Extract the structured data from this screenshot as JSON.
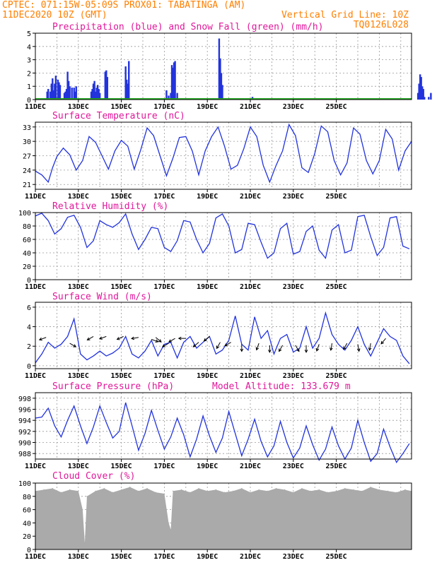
{
  "header": {
    "line1": "CPTEC:   071:15W-05:09S   PROX01: TABATINGA (AM)",
    "line2_left": "11DEC2020 10Z (GMT)",
    "line2_right": "Vertical Grid Line: 10Z",
    "line3_right": "TQ0126L028"
  },
  "colors": {
    "header": "#ff7f00",
    "title": "#e0189a",
    "line": "#2233dd",
    "snow": "#22aa22",
    "cloud": "#aaaaaa"
  },
  "date_labels": [
    "11DEC",
    "13DEC",
    "15DEC",
    "17DEC",
    "19DEC",
    "21DEC",
    "23DEC",
    "25DEC"
  ],
  "chart_data": [
    {
      "type": "bar",
      "title": "Precipitation (blue) and Snow Fall (green) (mm/h)",
      "ylim": [
        0,
        5
      ],
      "yticks": [
        0,
        1,
        2,
        3,
        4,
        5
      ],
      "x_unit": "days since 11DEC2020 10Z",
      "series": [
        {
          "name": "Precipitation",
          "color": "#2233dd",
          "x": [
            0.55,
            0.6,
            0.7,
            0.75,
            0.8,
            0.85,
            0.9,
            0.95,
            1.05,
            1.1,
            1.15,
            1.35,
            1.4,
            1.45,
            1.5,
            1.55,
            1.6,
            1.7,
            1.8,
            1.85,
            1.9,
            2.6,
            2.65,
            2.7,
            2.75,
            2.8,
            2.85,
            2.9,
            2.95,
            3.0,
            3.25,
            3.3,
            3.35,
            4.2,
            4.25,
            4.3,
            4.35,
            6.1,
            6.2,
            6.3,
            6.35,
            6.4,
            6.45,
            6.5,
            6.6,
            8.55,
            8.6,
            8.65,
            8.7,
            10.1,
            17.8,
            17.85,
            17.9,
            17.95,
            18.0,
            18.05,
            18.1,
            18.3,
            18.4
          ],
          "values": [
            0.6,
            0.8,
            0.6,
            1.2,
            1.6,
            0.7,
            1.2,
            1.8,
            1.5,
            1.3,
            1.1,
            0.5,
            0.6,
            0.8,
            2.1,
            1.4,
            1.0,
            0.9,
            0.9,
            0.6,
            1.0,
            0.6,
            0.8,
            1.2,
            1.4,
            0.6,
            0.9,
            1.1,
            0.8,
            0.5,
            2.1,
            2.2,
            1.7,
            2.5,
            1.5,
            1.2,
            2.9,
            0.7,
            0.3,
            0.5,
            2.6,
            2.4,
            2.8,
            2.9,
            0.5,
            4.6,
            3.1,
            2.0,
            1.1,
            0.2,
            0.5,
            1.2,
            1.9,
            1.7,
            1.0,
            0.8,
            0.2,
            0.2,
            0.5
          ]
        },
        {
          "name": "Snow Fall",
          "color": "#22aa22",
          "x": [
            0,
            17.5
          ],
          "values": [
            0.05,
            0.05
          ]
        }
      ]
    },
    {
      "type": "line",
      "title": "Surface Temperature (nC)",
      "ylim": [
        20,
        34
      ],
      "yticks": [
        21,
        24,
        27,
        30,
        33
      ],
      "x": [
        0,
        0.3,
        0.6,
        0.8,
        1.0,
        1.3,
        1.6,
        1.9,
        2.2,
        2.5,
        2.8,
        3.1,
        3.4,
        3.7,
        4.0,
        4.3,
        4.6,
        4.9,
        5.2,
        5.5,
        5.8,
        6.1,
        6.4,
        6.7,
        7.0,
        7.3,
        7.6,
        7.9,
        8.2,
        8.5,
        8.8,
        9.1,
        9.4,
        9.7,
        10.0,
        10.3,
        10.6,
        10.9,
        11.2,
        11.5,
        11.8,
        12.1,
        12.4,
        12.7,
        13.0,
        13.3,
        13.6,
        13.9,
        14.2,
        14.5,
        14.8,
        15.1,
        15.4,
        15.7,
        16.0,
        16.3,
        16.6,
        16.9,
        17.2,
        17.5
      ],
      "values": [
        23.8,
        23.0,
        21.5,
        24.5,
        26.8,
        28.6,
        27.2,
        24.0,
        26.0,
        31.0,
        29.8,
        27.0,
        24.2,
        28.0,
        30.2,
        29.0,
        24.2,
        28.2,
        32.8,
        31.2,
        27.0,
        22.8,
        26.5,
        30.8,
        31.0,
        28.0,
        23.0,
        28.0,
        31.0,
        33.0,
        29.0,
        24.2,
        25.0,
        28.5,
        33.0,
        31.0,
        25.0,
        21.5,
        25.0,
        28.0,
        33.5,
        31.2,
        24.5,
        23.5,
        27.5,
        33.2,
        32.0,
        26.0,
        23.0,
        25.5,
        32.8,
        31.5,
        26.0,
        23.2,
        26.0,
        32.5,
        30.5,
        24.0,
        28.0,
        30.0
      ]
    },
    {
      "type": "line",
      "title": "Relative Humidity (%)",
      "ylim": [
        0,
        100
      ],
      "yticks": [
        0,
        20,
        40,
        60,
        80,
        100
      ],
      "x": [
        0,
        0.3,
        0.6,
        0.9,
        1.2,
        1.5,
        1.8,
        2.1,
        2.4,
        2.7,
        3.0,
        3.3,
        3.6,
        3.9,
        4.2,
        4.5,
        4.8,
        5.1,
        5.4,
        5.7,
        6.0,
        6.3,
        6.6,
        6.9,
        7.2,
        7.5,
        7.8,
        8.1,
        8.4,
        8.7,
        9.0,
        9.3,
        9.6,
        9.9,
        10.2,
        10.5,
        10.8,
        11.1,
        11.4,
        11.7,
        12.0,
        12.3,
        12.6,
        12.9,
        13.2,
        13.5,
        13.8,
        14.1,
        14.4,
        14.7,
        15.0,
        15.3,
        15.6,
        15.9,
        16.2,
        16.5,
        16.8,
        17.1,
        17.4
      ],
      "values": [
        95,
        99,
        88,
        68,
        76,
        93,
        96,
        78,
        48,
        58,
        88,
        82,
        78,
        85,
        98,
        68,
        45,
        60,
        78,
        76,
        48,
        42,
        58,
        88,
        86,
        60,
        40,
        54,
        92,
        98,
        80,
        40,
        45,
        84,
        82,
        56,
        32,
        40,
        76,
        84,
        38,
        42,
        72,
        80,
        44,
        32,
        74,
        82,
        40,
        44,
        94,
        96,
        64,
        36,
        48,
        92,
        94,
        50,
        46
      ]
    },
    {
      "type": "line",
      "title": "Surface Wind (m/s)",
      "ylim": [
        -0.3,
        6.5
      ],
      "yticks": [
        0,
        2,
        4,
        6
      ],
      "x": [
        0,
        0.3,
        0.6,
        0.9,
        1.2,
        1.5,
        1.8,
        2.1,
        2.4,
        2.7,
        3.0,
        3.3,
        3.6,
        3.9,
        4.2,
        4.5,
        4.8,
        5.1,
        5.4,
        5.7,
        6.0,
        6.3,
        6.6,
        6.9,
        7.2,
        7.5,
        7.8,
        8.1,
        8.4,
        8.7,
        9.0,
        9.3,
        9.6,
        9.9,
        10.2,
        10.5,
        10.8,
        11.1,
        11.4,
        11.7,
        12.0,
        12.3,
        12.6,
        12.9,
        13.2,
        13.5,
        13.8,
        14.1,
        14.4,
        14.7,
        15.0,
        15.3,
        15.6,
        15.9,
        16.2,
        16.5,
        16.8,
        17.1,
        17.4
      ],
      "values": [
        0.3,
        1.2,
        2.4,
        1.8,
        2.2,
        3.0,
        4.8,
        1.2,
        0.6,
        1.0,
        1.5,
        1.0,
        1.3,
        1.8,
        3.0,
        1.2,
        0.8,
        1.5,
        2.6,
        1.0,
        2.2,
        2.4,
        0.8,
        2.4,
        3.0,
        1.8,
        2.4,
        3.0,
        1.2,
        1.6,
        2.6,
        5.1,
        2.2,
        1.6,
        5.0,
        2.8,
        3.6,
        1.2,
        2.8,
        3.2,
        1.4,
        1.8,
        4.0,
        1.8,
        2.8,
        5.4,
        3.2,
        2.2,
        1.6,
        2.6,
        4.0,
        2.2,
        1.0,
        2.4,
        3.8,
        3.0,
        2.6,
        1.0,
        0.2
      ],
      "vectors_x": [
        0.5,
        1.6,
        2.7,
        3.3,
        4.1,
        4.8,
        5.4,
        5.6,
        6.2,
        6.5,
        7.0,
        7.6,
        8.1,
        8.6,
        9.1,
        9.6,
        10.4,
        10.9,
        11.5,
        12.1,
        12.6,
        13.2,
        13.8,
        14.5,
        15.0,
        15.6,
        16.3
      ],
      "vectors_y": [
        2.9,
        2.3,
        3.0,
        3.0,
        3.0,
        2.9,
        2.7,
        2.9,
        2.3,
        2.8,
        2.8,
        2.4,
        3.0,
        2.4,
        2.4,
        2.2,
        2.3,
        2.1,
        2.1,
        2.1,
        2.1,
        2.2,
        2.3,
        2.3,
        2.2,
        2.3,
        2.8
      ],
      "vectors_deg": [
        160,
        30,
        150,
        160,
        155,
        170,
        20,
        40,
        150,
        150,
        180,
        140,
        140,
        120,
        150,
        90,
        110,
        90,
        120,
        60,
        90,
        110,
        100,
        120,
        80,
        100,
        130
      ]
    },
    {
      "type": "line",
      "title": "Surface Pressure (hPa)",
      "annotation": "Model Altitude: 133.679  m",
      "ylim": [
        987,
        999
      ],
      "yticks": [
        988,
        990,
        992,
        994,
        996,
        998
      ],
      "x": [
        0,
        0.3,
        0.6,
        0.9,
        1.2,
        1.5,
        1.8,
        2.1,
        2.4,
        2.7,
        3.0,
        3.3,
        3.6,
        3.9,
        4.2,
        4.5,
        4.8,
        5.1,
        5.4,
        5.7,
        6.0,
        6.3,
        6.6,
        6.9,
        7.2,
        7.5,
        7.8,
        8.1,
        8.4,
        8.7,
        9.0,
        9.3,
        9.6,
        9.9,
        10.2,
        10.5,
        10.8,
        11.1,
        11.4,
        11.7,
        12.0,
        12.3,
        12.6,
        12.9,
        13.2,
        13.5,
        13.8,
        14.1,
        14.4,
        14.7,
        15.0,
        15.3,
        15.6,
        15.9,
        16.2,
        16.5,
        16.8,
        17.1,
        17.4
      ],
      "values": [
        994.4,
        994.6,
        996.2,
        993.0,
        991.0,
        994.0,
        996.6,
        993.0,
        989.8,
        992.8,
        996.6,
        993.6,
        990.8,
        992.0,
        997.2,
        993.0,
        988.6,
        991.6,
        995.8,
        992.2,
        988.8,
        991.0,
        994.4,
        991.4,
        987.4,
        990.6,
        994.8,
        991.2,
        988.2,
        990.8,
        995.6,
        991.6,
        987.6,
        990.6,
        994.2,
        990.2,
        987.4,
        989.4,
        993.8,
        990.0,
        987.2,
        989.0,
        993.0,
        989.6,
        986.8,
        988.8,
        992.8,
        989.4,
        987.0,
        989.0,
        994.0,
        990.0,
        986.6,
        988.0,
        992.4,
        989.2,
        986.4,
        988.0,
        989.8
      ]
    },
    {
      "type": "area",
      "title": "Cloud Cover (%)",
      "ylim": [
        0,
        100
      ],
      "yticks": [
        0,
        20,
        40,
        60,
        80,
        100
      ],
      "x": [
        0,
        0.4,
        0.8,
        1.2,
        1.6,
        2.0,
        2.2,
        2.3,
        2.4,
        2.8,
        3.2,
        3.6,
        4.0,
        4.4,
        4.8,
        5.2,
        5.6,
        6.0,
        6.2,
        6.3,
        6.4,
        6.8,
        7.2,
        7.6,
        8.0,
        8.4,
        8.8,
        9.2,
        9.6,
        10.0,
        10.4,
        10.8,
        11.2,
        11.6,
        12.0,
        12.4,
        12.8,
        13.2,
        13.6,
        14.0,
        14.4,
        14.8,
        15.2,
        15.6,
        16.0,
        16.4,
        16.8,
        17.2,
        17.5
      ],
      "values": [
        88,
        90,
        92,
        86,
        90,
        88,
        60,
        10,
        80,
        88,
        92,
        86,
        90,
        94,
        88,
        92,
        86,
        84,
        40,
        30,
        88,
        90,
        86,
        92,
        88,
        90,
        86,
        88,
        92,
        86,
        90,
        88,
        92,
        90,
        86,
        92,
        88,
        90,
        86,
        88,
        92,
        90,
        88,
        94,
        90,
        88,
        86,
        90,
        88
      ]
    }
  ]
}
